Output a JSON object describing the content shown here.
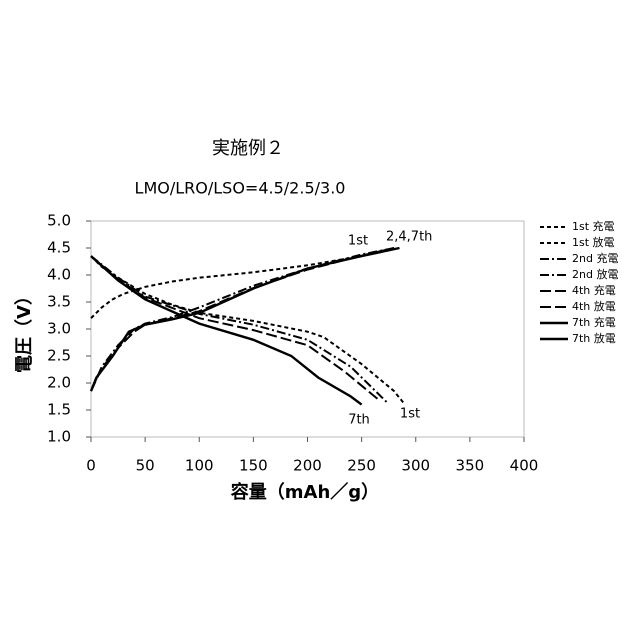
{
  "chart_data": {
    "type": "line",
    "title": "実施例２",
    "subtitle": "LMO/LRO/LSO=4.5/2.5/3.0",
    "x_label": "容量（mAh／g）",
    "y_label": "電圧（V）",
    "annotations": [
      "1st",
      "2,4,7th",
      "7th",
      "1st"
    ],
    "xlim": [
      0,
      400
    ],
    "xticks": [
      0,
      50,
      100,
      150,
      200,
      250,
      300,
      350,
      400
    ],
    "ylim": [
      1,
      5
    ],
    "yticks": [
      {
        "value": 1,
        "label": "1.0"
      },
      1.5,
      {
        "value": 2,
        "label": "2.0"
      },
      2.5,
      {
        "value": 3,
        "label": "3.0"
      },
      3.5,
      {
        "value": 4,
        "label": "4.0"
      },
      4.5,
      {
        "value": 5,
        "label": "5.0"
      }
    ],
    "grid": false,
    "legend": "right",
    "series": [
      {
        "name": "1st 充電",
        "color": "#000000",
        "line_style": "dashed",
        "x": [
          0,
          5,
          10,
          20,
          30,
          50,
          75,
          100,
          150,
          200,
          250,
          285
        ],
        "values": [
          3.2,
          3.3,
          3.4,
          3.55,
          3.65,
          3.78,
          3.88,
          3.95,
          4.05,
          4.18,
          4.35,
          4.5
        ]
      },
      {
        "name": "1st 放電",
        "color": "#000000",
        "line_style": "dashed",
        "x": [
          0,
          10,
          25,
          50,
          75,
          100,
          150,
          200,
          215,
          250,
          280,
          290
        ],
        "values": [
          4.35,
          4.15,
          3.95,
          3.65,
          3.45,
          3.3,
          3.15,
          2.95,
          2.85,
          2.35,
          1.85,
          1.6
        ]
      },
      {
        "name": "2nd 充電",
        "color": "#000000",
        "line_style": "dashdot",
        "x": [
          0,
          10,
          25,
          40,
          50,
          75,
          100,
          150,
          200,
          250,
          280
        ],
        "values": [
          1.85,
          2.3,
          2.7,
          3.0,
          3.1,
          3.22,
          3.4,
          3.8,
          4.12,
          4.38,
          4.5
        ]
      },
      {
        "name": "2nd 放電",
        "color": "#000000",
        "line_style": "dashdot",
        "x": [
          0,
          25,
          50,
          100,
          150,
          200,
          240,
          273
        ],
        "values": [
          4.35,
          3.95,
          3.6,
          3.28,
          3.08,
          2.8,
          2.3,
          1.65
        ]
      },
      {
        "name": "4th 充電",
        "color": "#000000",
        "line_style": "longdash",
        "x": [
          0,
          10,
          25,
          40,
          50,
          75,
          100,
          150,
          200,
          250,
          280
        ],
        "values": [
          1.85,
          2.28,
          2.65,
          2.95,
          3.08,
          3.2,
          3.33,
          3.76,
          4.1,
          4.36,
          4.5
        ]
      },
      {
        "name": "4th 放電",
        "color": "#000000",
        "line_style": "longdash",
        "x": [
          0,
          25,
          50,
          100,
          150,
          200,
          235,
          265
        ],
        "values": [
          4.35,
          3.92,
          3.58,
          3.2,
          2.98,
          2.7,
          2.2,
          1.7
        ]
      },
      {
        "name": "7th 充電",
        "color": "#000000",
        "line_style": "solid",
        "x": [
          0,
          5,
          20,
          35,
          50,
          75,
          100,
          150,
          200,
          250,
          285
        ],
        "values": [
          1.85,
          2.1,
          2.5,
          2.95,
          3.08,
          3.18,
          3.3,
          3.75,
          4.12,
          4.35,
          4.5
        ]
      },
      {
        "name": "7th 放電",
        "color": "#000000",
        "line_style": "solid",
        "x": [
          0,
          25,
          50,
          100,
          150,
          185,
          210,
          240,
          250
        ],
        "values": [
          4.35,
          3.9,
          3.55,
          3.1,
          2.8,
          2.5,
          2.1,
          1.75,
          1.6
        ]
      }
    ]
  }
}
